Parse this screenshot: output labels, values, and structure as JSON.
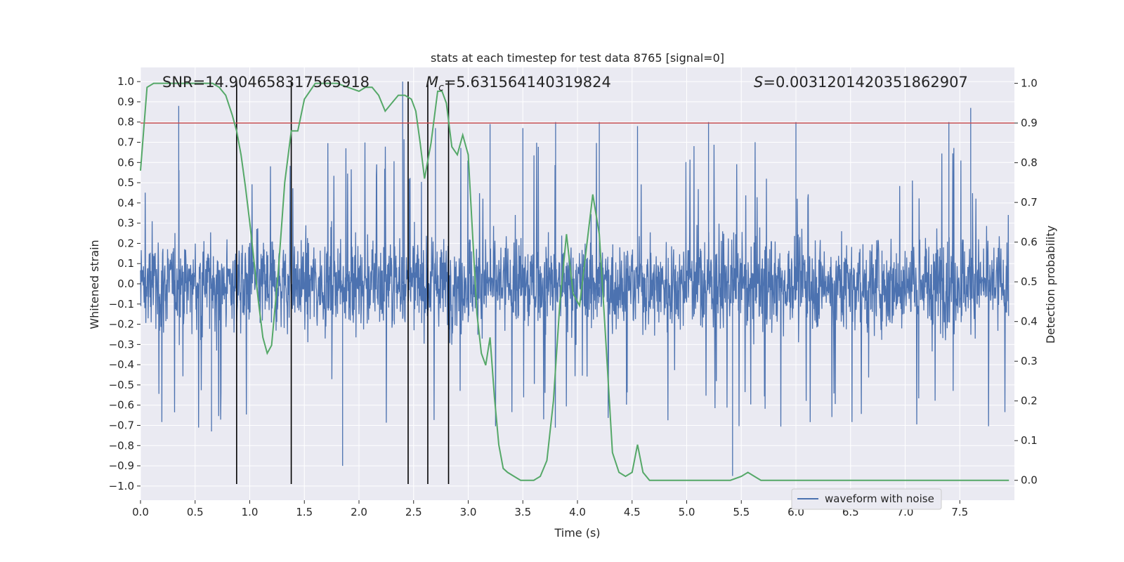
{
  "chart_data": {
    "type": "line",
    "title": "stats at each timestep for test data 8765 [signal=0]",
    "xlabel": "Time (s)",
    "ylabel_left": "Whitened strain",
    "ylabel_right": "Detection probability",
    "xlim": [
      0.0,
      8.0
    ],
    "ylim_left": [
      -1.07,
      1.07
    ],
    "ylim_right": [
      -0.05,
      1.04
    ],
    "x_ticks": [
      "0.0",
      "0.5",
      "1.0",
      "1.5",
      "2.0",
      "2.5",
      "3.0",
      "3.5",
      "4.0",
      "4.5",
      "5.0",
      "5.5",
      "6.0",
      "6.5",
      "7.0",
      "7.5"
    ],
    "y_ticks_left": [
      "1.0",
      "0.9",
      "0.8",
      "0.7",
      "0.6",
      "0.5",
      "0.4",
      "0.3",
      "0.2",
      "0.1",
      "0.0",
      "-0.1",
      "-0.2",
      "-0.3",
      "-0.4",
      "-0.5",
      "-0.6",
      "-0.7",
      "-0.8",
      "-0.9",
      "-1.0"
    ],
    "y_ticks_right": [
      "1.0",
      "0.9",
      "0.8",
      "0.7",
      "0.6",
      "0.5",
      "0.4",
      "0.3",
      "0.2",
      "0.1",
      "0.0"
    ],
    "grid": true,
    "legend_position": "bottom-right",
    "annotations": {
      "snr": "SNR=14.904658317565918",
      "mc_symbol": "M",
      "mc_sub": "c",
      "mc_value": "=5.631564140319824",
      "s_symbol": "S",
      "s_value": "=0.0031201420351862907"
    },
    "threshold": {
      "value": 0.9,
      "axis": "right",
      "color": "#c44e52"
    },
    "vertical_markers": [
      0.88,
      1.38,
      2.45,
      2.63,
      2.82
    ],
    "series": [
      {
        "name": "waveform with noise",
        "axis": "left",
        "color": "#4c72b0",
        "kind": "noise",
        "amplitude_envelope": {
          "typical": 0.42,
          "peak_max": 1.0,
          "peak_min": -0.95
        },
        "notable_peaks": [
          {
            "x": 0.35,
            "y": 0.88
          },
          {
            "x": 2.4,
            "y": 1.0
          },
          {
            "x": 2.7,
            "y": 0.77
          },
          {
            "x": 3.2,
            "y": 0.79
          },
          {
            "x": 3.5,
            "y": 0.77
          },
          {
            "x": 3.8,
            "y": 0.8
          },
          {
            "x": 4.2,
            "y": 0.8
          },
          {
            "x": 4.55,
            "y": 0.78
          },
          {
            "x": 5.2,
            "y": 0.8
          },
          {
            "x": 6.0,
            "y": 0.8
          },
          {
            "x": 7.4,
            "y": 0.8
          },
          {
            "x": 7.6,
            "y": 0.87
          },
          {
            "x": 5.42,
            "y": -0.95
          },
          {
            "x": 1.85,
            "y": -0.9
          },
          {
            "x": 0.65,
            "y": -0.73
          }
        ]
      },
      {
        "name": "",
        "axis": "right",
        "color": "#55a868",
        "kind": "line",
        "x": [
          0.0,
          0.06,
          0.12,
          0.2,
          0.3,
          0.4,
          0.5,
          0.6,
          0.66,
          0.72,
          0.78,
          0.84,
          0.88,
          0.92,
          0.96,
          1.0,
          1.04,
          1.08,
          1.12,
          1.16,
          1.2,
          1.26,
          1.32,
          1.38,
          1.44,
          1.5,
          1.6,
          1.7,
          1.8,
          1.9,
          2.0,
          2.06,
          2.12,
          2.18,
          2.24,
          2.3,
          2.36,
          2.42,
          2.48,
          2.52,
          2.56,
          2.6,
          2.66,
          2.72,
          2.76,
          2.8,
          2.85,
          2.9,
          2.95,
          3.0,
          3.04,
          3.08,
          3.12,
          3.16,
          3.2,
          3.24,
          3.28,
          3.32,
          3.36,
          3.42,
          3.48,
          3.54,
          3.6,
          3.66,
          3.72,
          3.78,
          3.84,
          3.9,
          3.96,
          4.02,
          4.08,
          4.14,
          4.2,
          4.26,
          4.32,
          4.38,
          4.44,
          4.5,
          4.55,
          4.6,
          4.66,
          4.72,
          4.8,
          4.9,
          5.0,
          5.1,
          5.2,
          5.3,
          5.4,
          5.5,
          5.56,
          5.62,
          5.68,
          5.74,
          5.8,
          5.9,
          6.0,
          6.2,
          6.4,
          6.6,
          6.8,
          7.0,
          7.1,
          7.2,
          7.4,
          7.6,
          7.8,
          7.95
        ],
        "y": [
          0.78,
          0.99,
          1.0,
          1.0,
          1.0,
          1.0,
          1.0,
          1.0,
          1.0,
          0.99,
          0.97,
          0.92,
          0.88,
          0.82,
          0.74,
          0.65,
          0.55,
          0.45,
          0.36,
          0.32,
          0.34,
          0.52,
          0.75,
          0.88,
          0.88,
          0.96,
          1.0,
          1.0,
          1.0,
          0.99,
          0.98,
          0.99,
          0.99,
          0.97,
          0.93,
          0.95,
          0.97,
          0.97,
          0.96,
          0.93,
          0.85,
          0.76,
          0.85,
          0.98,
          0.98,
          0.95,
          0.84,
          0.82,
          0.87,
          0.82,
          0.62,
          0.42,
          0.32,
          0.29,
          0.36,
          0.21,
          0.09,
          0.03,
          0.02,
          0.01,
          0.0,
          0.0,
          0.0,
          0.01,
          0.05,
          0.2,
          0.45,
          0.62,
          0.47,
          0.44,
          0.58,
          0.72,
          0.62,
          0.35,
          0.07,
          0.02,
          0.01,
          0.02,
          0.09,
          0.02,
          0.0,
          0.0,
          0.0,
          0.0,
          0.0,
          0.0,
          0.0,
          0.0,
          0.0,
          0.01,
          0.02,
          0.01,
          0.0,
          0.0,
          0.0,
          0.0,
          0.0,
          0.0,
          0.0,
          0.0,
          0.0,
          0.0,
          0.0,
          0.0,
          0.0,
          0.0,
          0.0,
          0.0
        ]
      }
    ]
  }
}
